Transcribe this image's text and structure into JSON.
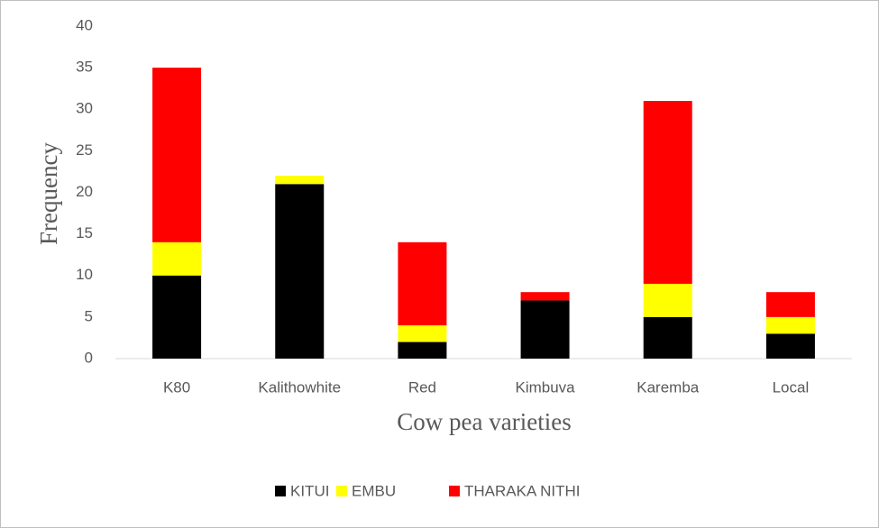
{
  "chart_data": {
    "type": "stacked_bar",
    "x_label": "Cow pea varieties",
    "y_label": "Frequency",
    "categories": [
      "K80",
      "Kalithowhite",
      "Red",
      "Kimbuva",
      "Karemba",
      "Local"
    ],
    "series": [
      {
        "name": "KITUI",
        "color": "#000000",
        "values": [
          10,
          21,
          2,
          7,
          5,
          3
        ]
      },
      {
        "name": "EMBU",
        "color": "#ffff00",
        "values": [
          4,
          1,
          2,
          0,
          4,
          2
        ]
      },
      {
        "name": "THARAKA NITHI",
        "color": "#ff0000",
        "values": [
          21,
          0,
          10,
          1,
          22,
          3
        ]
      }
    ],
    "ylim": [
      0,
      40
    ],
    "yticks": [
      0,
      5,
      10,
      15,
      20,
      25,
      30,
      35,
      40
    ],
    "grid": false,
    "legend": "bottom"
  }
}
